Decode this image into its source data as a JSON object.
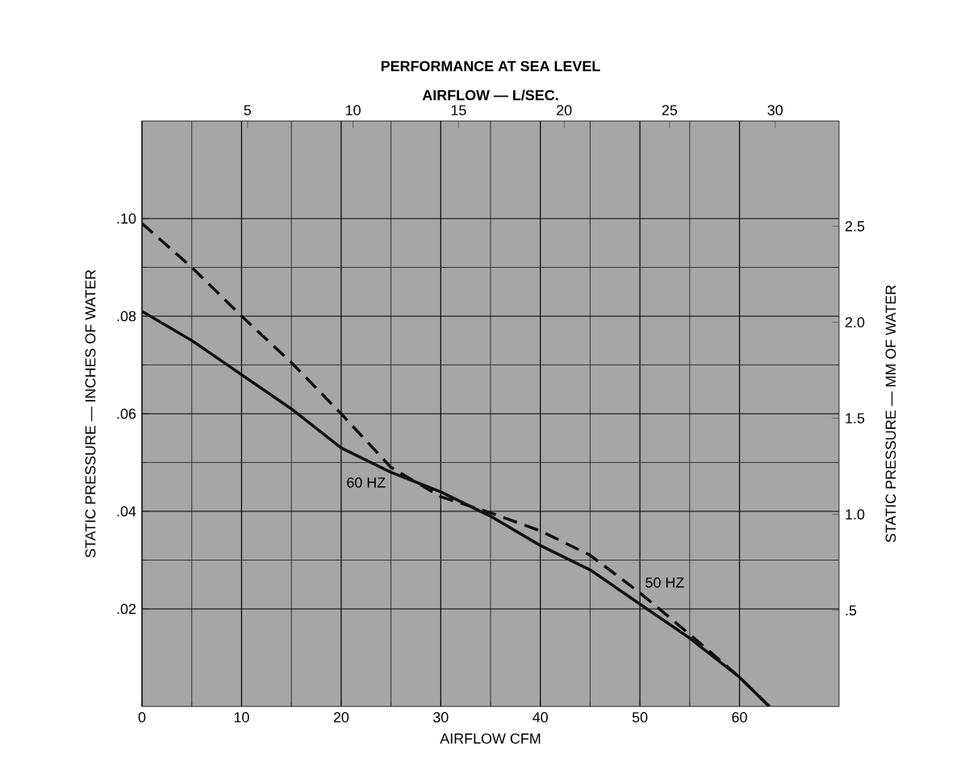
{
  "chart_data": {
    "type": "line",
    "title": "PERFORMANCE AT SEA LEVEL",
    "x2label": "AIRFLOW — L/SEC.",
    "xlabel": "AIRFLOW   CFM",
    "ylabel": "STATIC PRESSURE — INCHES OF WATER",
    "y2label": "STATIC PRESSURE — MM OF WATER",
    "xlim": [
      0,
      70
    ],
    "xticks": [
      0,
      10,
      20,
      30,
      40,
      50,
      60
    ],
    "ylim": [
      0,
      0.12
    ],
    "yticks": [
      {
        "value": 0.02,
        "label": ".02"
      },
      {
        "value": 0.04,
        "label": ".04"
      },
      {
        "value": 0.06,
        "label": ".06"
      },
      {
        "value": 0.08,
        "label": ".08"
      },
      {
        "value": 0.1,
        "label": ".10"
      }
    ],
    "x2lim": [
      0,
      33.03
    ],
    "x2ticks": [
      5,
      10,
      15,
      20,
      25,
      30
    ],
    "y2lim": [
      0,
      3.048
    ],
    "y2ticks": [
      {
        "value": 0.5,
        "label": ".5"
      },
      {
        "value": 1.0,
        "label": "1.0"
      },
      {
        "value": 1.5,
        "label": "1.5"
      },
      {
        "value": 2.0,
        "label": "2.0"
      },
      {
        "value": 2.5,
        "label": "2.5"
      }
    ],
    "x": [
      0,
      5,
      10,
      15,
      20,
      25,
      30,
      35,
      40,
      45,
      50,
      55,
      60,
      63
    ],
    "grid": true,
    "marker": "none",
    "series": [
      {
        "name": "60 HZ",
        "color": "#111111",
        "line_style": "solid",
        "values": [
          0.081,
          0.075,
          0.068,
          0.061,
          0.053,
          0.048,
          0.044,
          0.039,
          0.033,
          0.028,
          0.021,
          0.014,
          0.006,
          0
        ]
      },
      {
        "name": "50 HZ",
        "color": "#111111",
        "line_style": "dashed",
        "values": [
          0.099,
          0.09,
          0.08,
          0.0705,
          0.06,
          0.049,
          0.043,
          0.0397,
          0.036,
          0.031,
          0.0233,
          0.0148,
          0.006,
          0
        ]
      }
    ]
  }
}
